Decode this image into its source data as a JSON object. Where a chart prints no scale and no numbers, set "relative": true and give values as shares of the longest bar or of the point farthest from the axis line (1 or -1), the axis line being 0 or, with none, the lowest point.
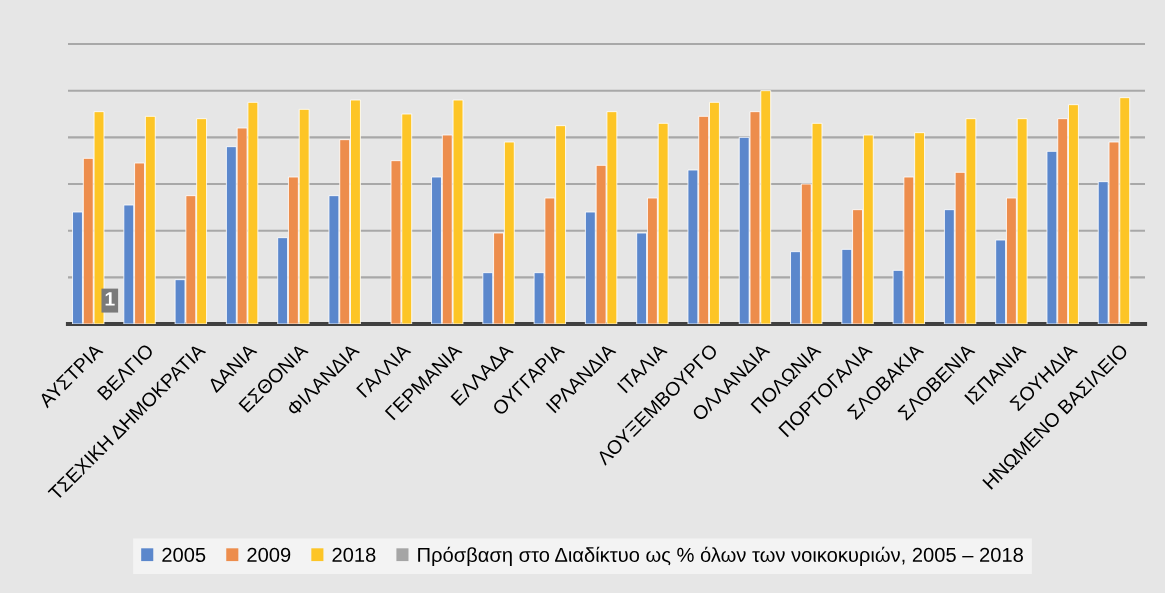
{
  "chart_data": {
    "type": "bar",
    "relative": true,
    "categories": [
      "ΑΥΣΤΡΙΑ",
      "ΒΕΛΓΙΟ",
      "ΤΣΕΧΙΚΗ ΔΗΜΟΚΡΑΤΙΑ",
      "ΔΑΝΙΑ",
      "ΕΣΘΟΝΙΑ",
      "ΦΙΛΑΝΔΙΑ",
      "ΓΑΛΛΙΑ",
      "ΓΕΡΜΑΝΙΑ",
      "ΕΛΛΑΔΑ",
      "ΟΥΓΓΑΡΙΑ",
      "ΙΡΛΑΝΔΙΑ",
      "ΙΤΑΛΙΑ",
      "ΛΟΥΞΕΜΒΟΥΡΓΟ",
      "ΟΛΛΑΝΔΙΑ",
      "ΠΟΛΩΝΙΑ",
      "ΠΟΡΤΟΓΑΛΙΑ",
      "ΣΛΟΒΑΚΙΑ",
      "ΣΛΟΒΕΝΙΑ",
      "ΙΣΠΑΝΙΑ",
      "ΣΟΥΗΔΙΑ",
      "ΗΝΩΜΕΝΟ ΒΑΣΙΛΕΙΟ"
    ],
    "series": [
      {
        "name": "2005",
        "color": "#5b87cc",
        "values": [
          0.48,
          0.51,
          0.19,
          0.76,
          0.37,
          0.55,
          null,
          0.63,
          0.22,
          0.22,
          0.48,
          0.39,
          0.66,
          0.8,
          0.31,
          0.32,
          0.23,
          0.49,
          0.36,
          0.74,
          0.61
        ]
      },
      {
        "name": "2009",
        "color": "#ed8d4c",
        "values": [
          0.71,
          0.69,
          0.55,
          0.84,
          0.63,
          0.79,
          0.7,
          0.81,
          0.39,
          0.54,
          0.68,
          0.54,
          0.89,
          0.91,
          0.6,
          0.49,
          0.63,
          0.65,
          0.54,
          0.88,
          0.78
        ]
      },
      {
        "name": "2018",
        "color": "#fdc526",
        "values": [
          0.91,
          0.89,
          0.88,
          0.95,
          0.92,
          0.96,
          0.9,
          0.96,
          0.78,
          0.85,
          0.91,
          0.86,
          0.95,
          1.0,
          0.86,
          0.81,
          0.82,
          0.88,
          0.88,
          0.94,
          0.97
        ]
      },
      {
        "name": "Πρόσβαση στο Διαδίκτυο ως % όλων των νοικοκυριών, 2005 – 2018",
        "color": "#a5a5a5",
        "values": [
          null,
          null,
          null,
          null,
          null,
          null,
          null,
          null,
          null,
          null,
          null,
          null,
          null,
          null,
          null,
          null,
          null,
          null,
          null,
          null,
          null
        ]
      }
    ],
    "grid": "y",
    "legend": "bottom",
    "annotations": [
      "1"
    ]
  }
}
